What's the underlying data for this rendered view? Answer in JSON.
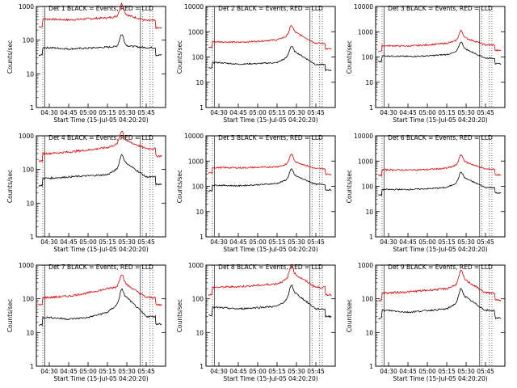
{
  "window": {
    "title": ""
  },
  "legend_text": "BLACK = Events, RED = LLD",
  "colors": {
    "events": "#000000",
    "lld": "#dd0000",
    "background": "#ffffff"
  },
  "chart_data": [
    {
      "type": "line",
      "title": "Det 1",
      "xlabel": "Start Time (15-Jul-05 04:20:20)",
      "ylabel": "Counts/sec",
      "yscale": "log",
      "ylim": [
        1,
        1000
      ],
      "x": [
        "04:30",
        "04:45",
        "05:00",
        "05:15",
        "05:30",
        "05:45"
      ],
      "series": [
        {
          "name": "BLACK = Events",
          "values": [
            60,
            55,
            58,
            62,
            68,
            60
          ]
        },
        {
          "name": "RED = LLD",
          "values": [
            420,
            400,
            430,
            460,
            560,
            380
          ]
        }
      ]
    },
    {
      "type": "line",
      "title": "Det 2",
      "xlabel": "Start Time (15-Jul-05 04:20:20)",
      "ylabel": "Counts/sec",
      "yscale": "log",
      "ylim": [
        1,
        10000
      ],
      "x": [
        "04:30",
        "04:45",
        "05:00",
        "05:15",
        "05:30",
        "05:45"
      ],
      "series": [
        {
          "name": "BLACK = Events",
          "values": [
            60,
            52,
            55,
            60,
            150,
            50
          ]
        },
        {
          "name": "RED = LLD",
          "values": [
            400,
            380,
            420,
            480,
            900,
            350
          ]
        }
      ]
    },
    {
      "type": "line",
      "title": "Det 3",
      "xlabel": "Start Time (15-Jul-05 04:20:20)",
      "ylabel": "Counts/sec",
      "yscale": "log",
      "ylim": [
        1,
        10000
      ],
      "x": [
        "04:30",
        "04:45",
        "05:00",
        "05:15",
        "05:30",
        "05:45"
      ],
      "series": [
        {
          "name": "BLACK = Events",
          "values": [
            110,
            105,
            110,
            125,
            200,
            90
          ]
        },
        {
          "name": "RED = LLD",
          "values": [
            280,
            270,
            300,
            350,
            550,
            300
          ]
        }
      ]
    },
    {
      "type": "line",
      "title": "Det 4",
      "xlabel": "Start Time (15-Jul-05 04:20:20)",
      "ylabel": "Counts/sec",
      "yscale": "log",
      "ylim": [
        1,
        1000
      ],
      "x": [
        "04:30",
        "04:45",
        "05:00",
        "05:15",
        "05:30",
        "05:45"
      ],
      "series": [
        {
          "name": "BLACK = Events",
          "values": [
            55,
            60,
            65,
            70,
            150,
            60
          ]
        },
        {
          "name": "RED = LLD",
          "values": [
            300,
            330,
            380,
            450,
            700,
            420
          ]
        }
      ]
    },
    {
      "type": "line",
      "title": "Det 5",
      "xlabel": "Start Time (15-Jul-05 04:20:20)",
      "ylabel": "Counts/sec",
      "yscale": "log",
      "ylim": [
        1,
        10000
      ],
      "x": [
        "04:30",
        "04:45",
        "05:00",
        "05:15",
        "05:30",
        "05:45"
      ],
      "series": [
        {
          "name": "BLACK = Events",
          "values": [
            110,
            105,
            115,
            130,
            250,
            120
          ]
        },
        {
          "name": "RED = LLD",
          "values": [
            550,
            540,
            560,
            600,
            900,
            500
          ]
        }
      ]
    },
    {
      "type": "line",
      "title": "Det 6",
      "xlabel": "Start Time (15-Jul-05 04:20:20)",
      "ylabel": "Counts/sec",
      "yscale": "log",
      "ylim": [
        1,
        10000
      ],
      "x": [
        "04:30",
        "04:45",
        "05:00",
        "05:15",
        "05:30",
        "05:45"
      ],
      "series": [
        {
          "name": "BLACK = Events",
          "values": [
            75,
            75,
            80,
            90,
            200,
            90
          ]
        },
        {
          "name": "RED = LLD",
          "values": [
            450,
            440,
            460,
            520,
            900,
            480
          ]
        }
      ]
    },
    {
      "type": "line",
      "title": "Det 7",
      "xlabel": "Start Time (15-Jul-05 04:20:20)",
      "ylabel": "Counts/sec",
      "yscale": "log",
      "ylim": [
        1,
        1000
      ],
      "x": [
        "04:30",
        "04:45",
        "05:00",
        "05:15",
        "05:30",
        "05:45"
      ],
      "series": [
        {
          "name": "BLACK = Events",
          "values": [
            28,
            25,
            28,
            40,
            110,
            30
          ]
        },
        {
          "name": "RED = LLD",
          "values": [
            110,
            120,
            150,
            200,
            260,
            110
          ]
        }
      ]
    },
    {
      "type": "line",
      "title": "Det 8",
      "xlabel": "Start Time (15-Jul-05 04:20:20)",
      "ylabel": "Counts/sec",
      "yscale": "log",
      "ylim": [
        1,
        1000
      ],
      "x": [
        "04:30",
        "04:45",
        "05:00",
        "05:15",
        "05:30",
        "05:45"
      ],
      "series": [
        {
          "name": "BLACK = Events",
          "values": [
            55,
            50,
            55,
            60,
            140,
            50
          ]
        },
        {
          "name": "RED = LLD",
          "values": [
            220,
            230,
            250,
            280,
            500,
            220
          ]
        }
      ]
    },
    {
      "type": "line",
      "title": "Det 9",
      "xlabel": "Start Time (15-Jul-05 04:20:20)",
      "ylabel": "Counts/sec",
      "yscale": "log",
      "ylim": [
        1,
        1000
      ],
      "x": [
        "04:30",
        "04:45",
        "05:00",
        "05:15",
        "05:30",
        "05:45"
      ],
      "series": [
        {
          "name": "BLACK = Events",
          "values": [
            45,
            40,
            45,
            50,
            110,
            45
          ]
        },
        {
          "name": "RED = LLD",
          "values": [
            150,
            160,
            180,
            200,
            350,
            150
          ]
        }
      ]
    }
  ]
}
